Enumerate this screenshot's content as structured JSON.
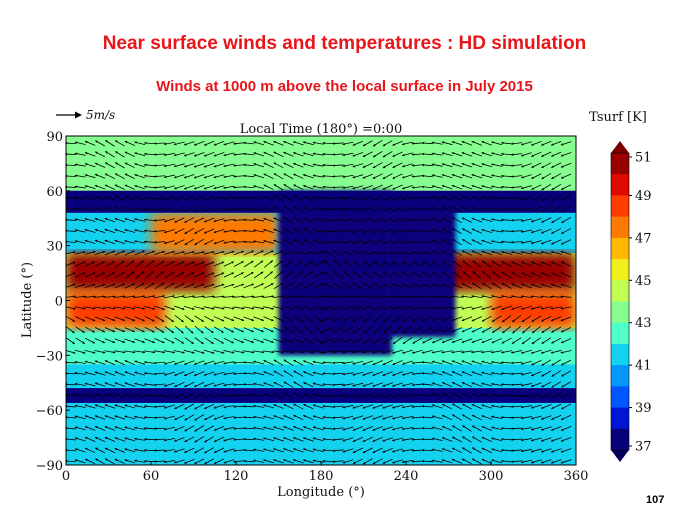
{
  "slide": {
    "title": "Near surface winds and temperatures : HD simulation",
    "subtitle": "Winds at 1000 m above the local surface in July 2015",
    "page_number": "107"
  },
  "chart_data": {
    "type": "heatmap",
    "title": "Local Time (180°) =0:00",
    "xlabel": "Longitude (°)",
    "ylabel": "Latitude (°)",
    "xlim": [
      0,
      360
    ],
    "ylim": [
      -90,
      90
    ],
    "x_ticks": [
      0,
      60,
      120,
      180,
      240,
      300,
      360
    ],
    "y_ticks": [
      {
        "value": 90,
        "label": "90"
      },
      {
        "value": 60,
        "label": "60"
      },
      {
        "value": 30,
        "label": "30"
      },
      {
        "value": 0,
        "label": "0"
      },
      {
        "value": -30,
        "label": "−30"
      },
      {
        "value": -60,
        "label": "−60"
      },
      {
        "value": -90,
        "label": "−90"
      }
    ],
    "wind_reference": {
      "label": "5m/s",
      "speed_ms": 5
    },
    "colorbar": {
      "label": "Tsurf [K]",
      "min": 37,
      "max": 51,
      "ticks": [
        51,
        49,
        47,
        45,
        43,
        41,
        39,
        37
      ],
      "extend": "both",
      "colors": [
        "#08007d",
        "#0016d4",
        "#0056ff",
        "#0097ff",
        "#12d2f0",
        "#4effc7",
        "#86ff90",
        "#c1ff55",
        "#f0ee1c",
        "#ffb700",
        "#ff7a00",
        "#ff3d00",
        "#e10a00",
        "#9a0000"
      ]
    },
    "temperature_bands": [
      {
        "lat_range": [
          60,
          90
        ],
        "tsurf_K": 43.5
      },
      {
        "lat_range": [
          48,
          60
        ],
        "tsurf_K": 37.2
      },
      {
        "lat_range": [
          26,
          48
        ],
        "tsurf_K": 41.5
      },
      {
        "lat_range": [
          5,
          26
        ],
        "tsurf_K": 44.0
      },
      {
        "lat_range": [
          -15,
          5
        ],
        "tsurf_K": 44.2
      },
      {
        "lat_range": [
          -35,
          -15
        ],
        "tsurf_K": 42.5
      },
      {
        "lat_range": [
          -48,
          -35
        ],
        "tsurf_K": 41.0
      },
      {
        "lat_range": [
          -56,
          -48
        ],
        "tsurf_K": 37.2
      },
      {
        "lat_range": [
          -90,
          -56
        ],
        "tsurf_K": 41.2
      }
    ],
    "warm_regions": [
      {
        "lon_range": [
          0,
          105
        ],
        "lat_range": [
          5,
          26
        ],
        "tsurf_K": 50.5
      },
      {
        "lon_range": [
          265,
          360
        ],
        "lat_range": [
          5,
          26
        ],
        "tsurf_K": 50.5
      },
      {
        "lon_range": [
          0,
          70
        ],
        "lat_range": [
          -15,
          5
        ],
        "tsurf_K": 48.5
      },
      {
        "lon_range": [
          300,
          360
        ],
        "lat_range": [
          -15,
          5
        ],
        "tsurf_K": 48.5
      },
      {
        "lon_range": [
          60,
          150
        ],
        "lat_range": [
          26,
          48
        ],
        "tsurf_K": 47.0
      }
    ],
    "cold_regions": [
      {
        "lon_range": [
          150,
          230
        ],
        "lat_range": [
          -30,
          60
        ],
        "tsurf_K": 37.2
      },
      {
        "lon_range": [
          225,
          275
        ],
        "lat_range": [
          -20,
          50
        ],
        "tsurf_K": 37.5
      }
    ]
  }
}
